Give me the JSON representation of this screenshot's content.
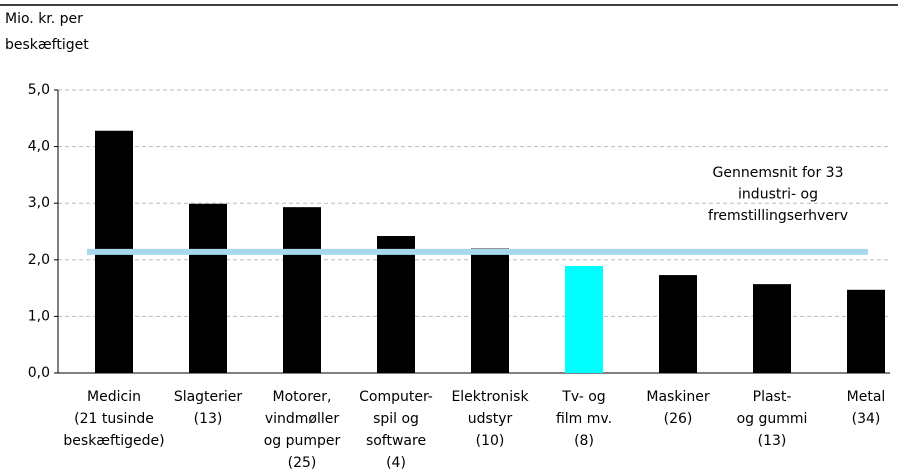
{
  "chart_data": {
    "type": "bar",
    "y_label": [
      "Mio. kr. per",
      "beskæftiget"
    ],
    "categories": [
      [
        "Medicin",
        "(21 tusinde",
        "beskæftigede)"
      ],
      [
        "Slagterier",
        "(13)"
      ],
      [
        "Motorer,",
        "vindmøller",
        "og pumper",
        "(25)"
      ],
      [
        "Computer-",
        "spil og",
        "software",
        "(4)"
      ],
      [
        "Elektronisk",
        "udstyr",
        "(10)"
      ],
      [
        "Tv- og",
        "film mv.",
        "(8)"
      ],
      [
        "Maskiner",
        "(26)"
      ],
      [
        "Plast-",
        "og gummi",
        "(13)"
      ],
      [
        "Metal",
        "(34)"
      ]
    ],
    "values": [
      4.28,
      2.99,
      2.93,
      2.42,
      2.2,
      1.89,
      1.73,
      1.57,
      1.47
    ],
    "colors": [
      "#000000",
      "#000000",
      "#000000",
      "#000000",
      "#000000",
      "#00ffff",
      "#000000",
      "#000000",
      "#000000"
    ],
    "average": {
      "value": 2.14,
      "color": "#a8d8ee",
      "label": [
        "Gennemsnit for 33",
        "industri- og",
        "fremstillingserhverv"
      ]
    },
    "ylim": [
      0,
      5
    ],
    "yticks": [
      {
        "value": 0,
        "label": "0,0"
      },
      {
        "value": 1,
        "label": "1,0"
      },
      {
        "value": 2,
        "label": "2,0"
      },
      {
        "value": 3,
        "label": "3,0"
      },
      {
        "value": 4,
        "label": "4,0"
      },
      {
        "value": 5,
        "label": "5,0"
      }
    ],
    "grid": true
  }
}
